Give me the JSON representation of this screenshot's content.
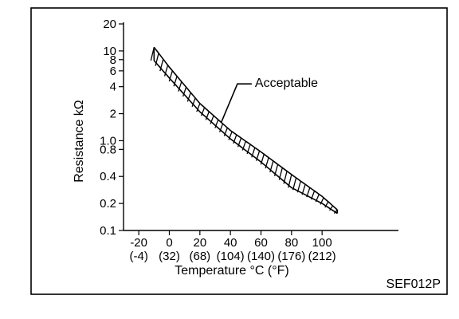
{
  "figure_id": "SEF012P",
  "chart_data": {
    "type": "line",
    "ylabel": "Resistance kΩ",
    "xlabel": "Temperature °C (°F)",
    "yscale": "log",
    "ylim": [
      0.1,
      20
    ],
    "xlim": [
      -30,
      150
    ],
    "y_ticks": [
      {
        "value": 0.1,
        "label": "0.1"
      },
      {
        "value": 0.2,
        "label": "0.2"
      },
      {
        "value": 0.4,
        "label": "0.4"
      },
      {
        "value": 0.8,
        "label": "0.8"
      },
      {
        "value": 1.0,
        "label": "1.0"
      },
      {
        "value": 2,
        "label": "2"
      },
      {
        "value": 4,
        "label": "4"
      },
      {
        "value": 6,
        "label": "6"
      },
      {
        "value": 8,
        "label": "8"
      },
      {
        "value": 10,
        "label": "10"
      },
      {
        "value": 20,
        "label": "20"
      }
    ],
    "x_ticks": [
      {
        "value": -20,
        "label": "-20",
        "sub": "(-4)"
      },
      {
        "value": 0,
        "label": "0",
        "sub": "(32)"
      },
      {
        "value": 20,
        "label": "20",
        "sub": "(68)"
      },
      {
        "value": 40,
        "label": "40",
        "sub": "(104)"
      },
      {
        "value": 60,
        "label": "60",
        "sub": "(140)"
      },
      {
        "value": 80,
        "label": "80",
        "sub": "(176)"
      },
      {
        "value": 100,
        "label": "100",
        "sub": "(212)"
      }
    ],
    "series": [
      {
        "name": "Acceptable",
        "kind": "band",
        "x": [
          -10,
          0,
          20,
          40,
          60,
          80,
          100,
          110
        ],
        "upper": [
          11,
          6.6,
          2.6,
          1.3,
          0.75,
          0.42,
          0.24,
          0.17
        ],
        "lower": [
          7.8,
          5.0,
          2.1,
          1.05,
          0.58,
          0.3,
          0.2,
          0.155
        ]
      }
    ],
    "annotations": [
      {
        "text": "Acceptable",
        "x": 55,
        "y": 3.5
      }
    ],
    "grid": false
  }
}
